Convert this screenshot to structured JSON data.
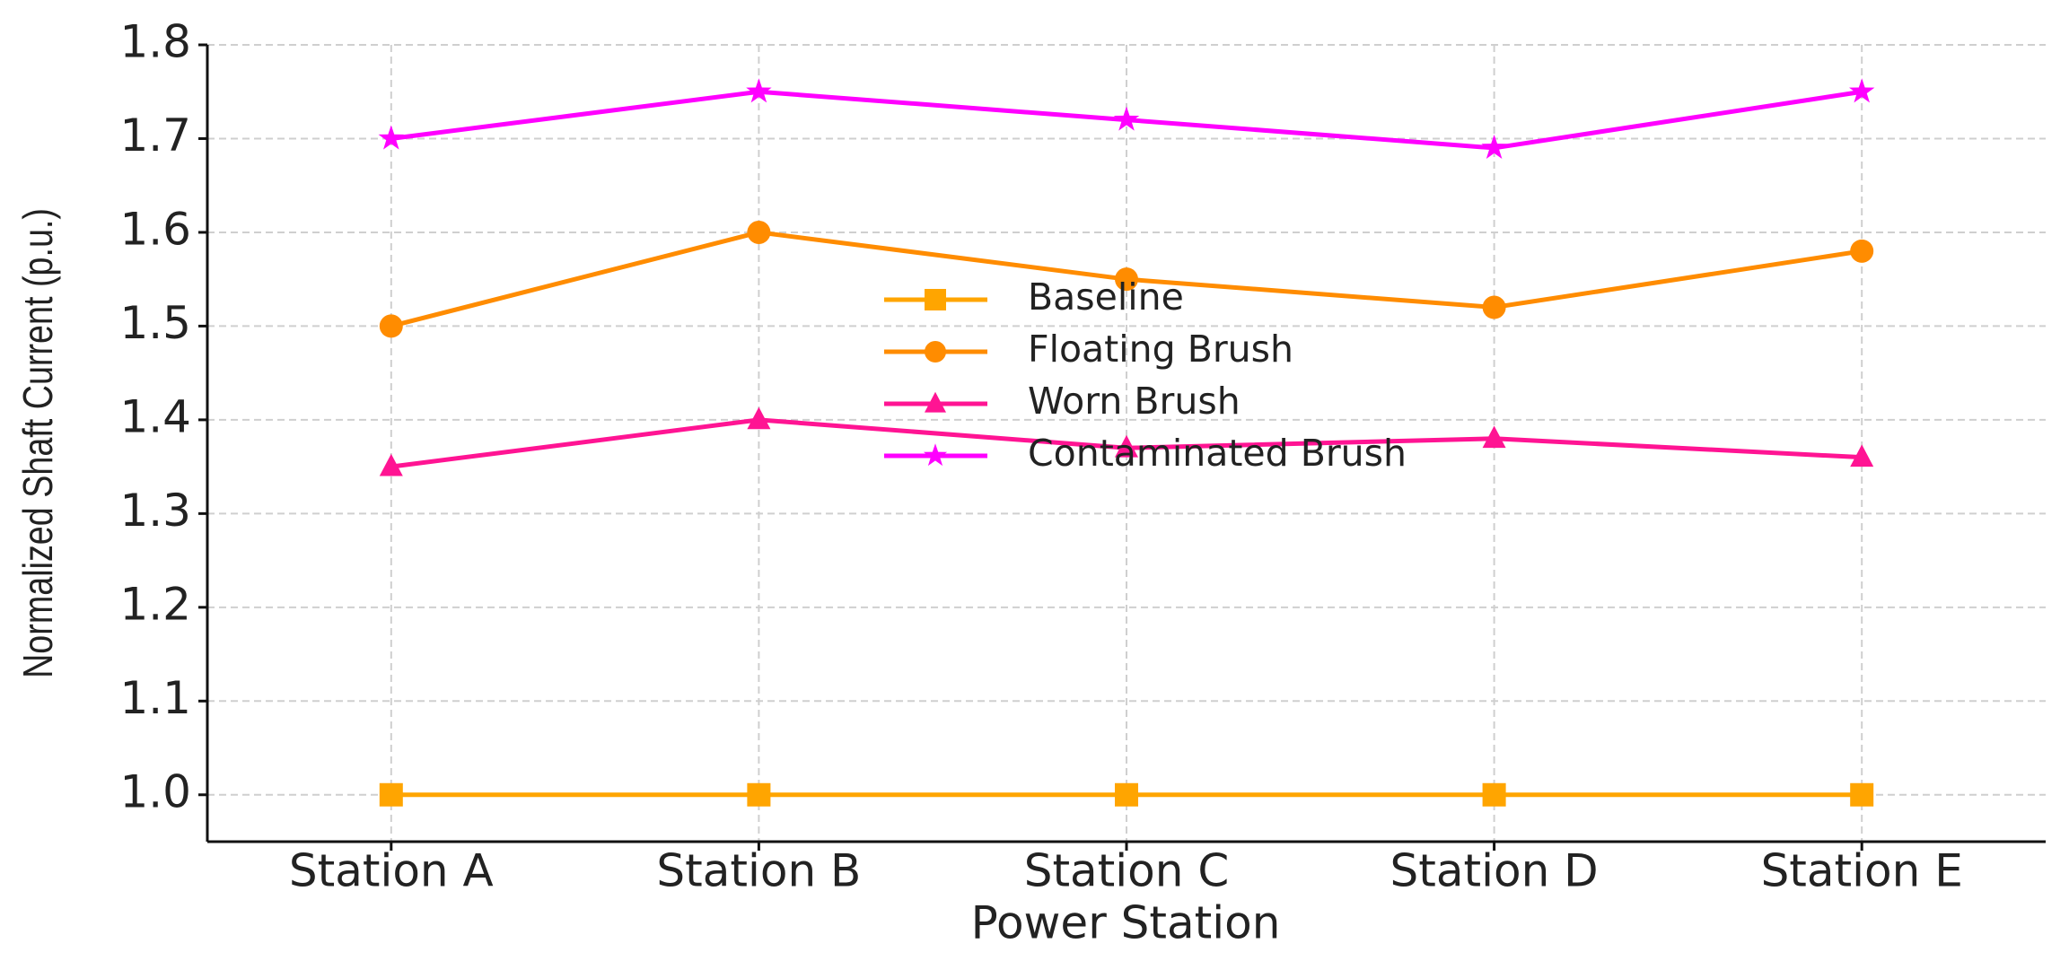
{
  "chart_data": {
    "type": "line",
    "xlabel": "Power Station",
    "ylabel": "Normalized Shaft Current (p.u.)",
    "categories": [
      "Station A",
      "Station B",
      "Station C",
      "Station D",
      "Station E"
    ],
    "series": [
      {
        "name": "Baseline",
        "color": "#FFA500",
        "marker": "square",
        "values": [
          1.0,
          1.0,
          1.0,
          1.0,
          1.0
        ]
      },
      {
        "name": "Floating Brush",
        "color": "#FF8C00",
        "marker": "circle",
        "values": [
          1.5,
          1.6,
          1.55,
          1.52,
          1.58
        ]
      },
      {
        "name": "Worn Brush",
        "color": "#FF1493",
        "marker": "triangle",
        "values": [
          1.35,
          1.4,
          1.37,
          1.38,
          1.36
        ]
      },
      {
        "name": "Contaminated Brush",
        "color": "#FF00FF",
        "marker": "star",
        "values": [
          1.7,
          1.75,
          1.72,
          1.69,
          1.75
        ]
      }
    ],
    "ylim": [
      0.95,
      1.8
    ],
    "yticks": [
      {
        "value": 1,
        "label": "1.0"
      },
      1.1,
      1.2,
      1.3,
      1.4,
      1.5,
      1.6,
      1.7,
      1.8
    ],
    "grid": true,
    "legend": "center"
  }
}
